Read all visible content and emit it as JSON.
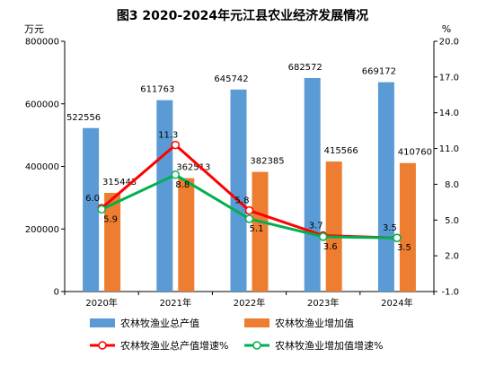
{
  "chart_data": {
    "type": "bar",
    "title": "图3   2020-2024年元江县农业经济发展情况",
    "y_left_unit": "万元",
    "y_right_unit": "%",
    "categories": [
      "2020年",
      "2021年",
      "2022年",
      "2023年",
      "2024年"
    ],
    "y_left_ticks": [
      "0",
      "200000",
      "400000",
      "600000",
      "800000"
    ],
    "y_right_ticks": [
      "-1.0",
      "2.0",
      "5.0",
      "8.0",
      "11.0",
      "14.0",
      "17.0",
      "20.0"
    ],
    "ylim_left": [
      0,
      800000
    ],
    "ylim_right": [
      -1.0,
      20.0
    ],
    "bar_series": [
      {
        "name": "农林牧渔业总产值",
        "color": "#5b9bd5",
        "values": [
          522556,
          611763,
          645742,
          682572,
          669172
        ],
        "labels": [
          "522556",
          "611763",
          "645742",
          "682572",
          "669172"
        ]
      },
      {
        "name": "农林牧渔业增加值",
        "color": "#ed7d31",
        "values": [
          315443,
          362513,
          382385,
          415566,
          410760
        ],
        "labels": [
          "315443",
          "362513",
          "382385",
          "415566",
          "410760"
        ]
      }
    ],
    "line_series": [
      {
        "name": "农林牧渔业总产值增速%",
        "color": "#ff0000",
        "values": [
          6.0,
          11.3,
          5.8,
          3.7,
          3.5
        ],
        "labels": [
          "6.0",
          "11.3",
          "5.8",
          "3.7",
          "3.5"
        ]
      },
      {
        "name": "农林牧渔业增加值增速%",
        "color": "#00b050",
        "values": [
          5.9,
          8.8,
          5.1,
          3.6,
          3.5
        ],
        "labels": [
          "5.9",
          "8.8",
          "5.1",
          "3.6",
          "3.5"
        ]
      }
    ],
    "legend_position": "bottom",
    "grid": false
  }
}
